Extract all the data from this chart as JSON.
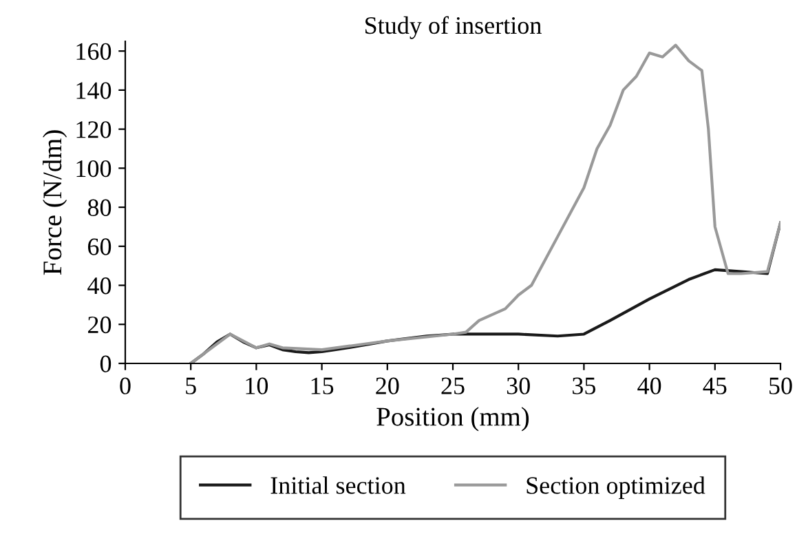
{
  "chart_data": {
    "type": "line",
    "title": "Study of insertion",
    "xlabel": "Position (mm)",
    "ylabel": "Force (N/dm)",
    "xlim": [
      0,
      50
    ],
    "xticks": [
      0,
      5,
      10,
      15,
      20,
      25,
      30,
      35,
      40,
      45,
      50
    ],
    "ylim": [
      0,
      165
    ],
    "yticks": [
      0,
      20,
      40,
      60,
      80,
      100,
      120,
      140,
      160
    ],
    "grid": false,
    "legend": "bottom",
    "line_style": "solid",
    "marker": "none",
    "series": [
      {
        "name": "Initial section",
        "color": "#1a1a1a",
        "x": [
          5,
          6,
          7,
          8,
          9,
          10,
          11,
          12,
          13,
          14,
          15,
          17,
          20,
          23,
          25,
          30,
          33,
          35,
          37,
          40,
          43,
          45,
          47,
          49,
          50
        ],
        "values": [
          0,
          5,
          11,
          15,
          11,
          8,
          9.5,
          7,
          6,
          5.5,
          6,
          8,
          11.5,
          14,
          15,
          15,
          14,
          15,
          22,
          33,
          43,
          48,
          47,
          46,
          72
        ]
      },
      {
        "name": "Section optimized",
        "color": "#999999",
        "x": [
          5,
          8,
          10,
          11,
          12,
          15,
          20,
          25,
          26,
          27,
          29,
          30,
          31,
          33,
          35,
          36,
          37,
          38,
          39,
          40,
          41,
          42,
          43,
          44,
          44.5,
          45,
          46,
          47,
          49,
          50
        ],
        "values": [
          0,
          15,
          8,
          10,
          8,
          7,
          11.5,
          15,
          16,
          22,
          28,
          35,
          40,
          65,
          90,
          110,
          122,
          140,
          147,
          159,
          157,
          163,
          155,
          150,
          120,
          70,
          46,
          46,
          47,
          72
        ]
      }
    ]
  }
}
